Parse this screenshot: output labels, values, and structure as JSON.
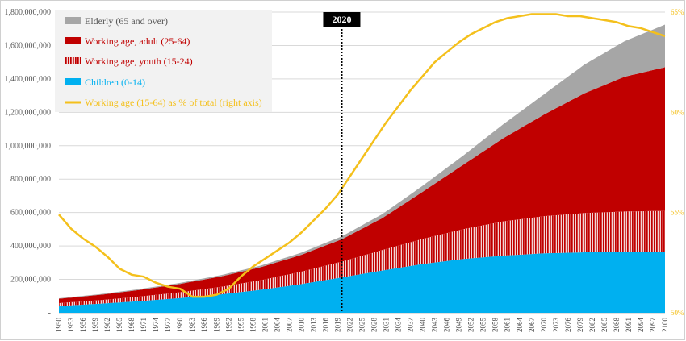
{
  "chart_data": {
    "type": "area",
    "title": "",
    "xlabel": "",
    "ylabel": "",
    "x_start": 1950,
    "x_end": 2100,
    "x_tick_step": 3,
    "ylim": [
      0,
      1800000000
    ],
    "y_ticks": [
      {
        "value": 0,
        "label": "-"
      },
      {
        "value": 200000000,
        "label": "200,000,000"
      },
      {
        "value": 400000000,
        "label": "400,000,000"
      },
      {
        "value": 600000000,
        "label": "600,000,000"
      },
      {
        "value": 800000000,
        "label": "800,000,000"
      },
      {
        "value": 1000000000,
        "label": "1,000,000,000"
      },
      {
        "value": 1200000000,
        "label": "1,200,000,000"
      },
      {
        "value": 1400000000,
        "label": "1,400,000,000"
      },
      {
        "value": 1600000000,
        "label": "1,600,000,000"
      },
      {
        "value": 1800000000,
        "label": "1,800,000,000"
      }
    ],
    "y2lim": [
      50,
      65
    ],
    "y2_ticks": [
      {
        "value": 50,
        "label": "50%"
      },
      {
        "value": 55,
        "label": "55%"
      },
      {
        "value": 60,
        "label": "60%"
      },
      {
        "value": 65,
        "label": "65%"
      }
    ],
    "grid": true,
    "legend_position": "top-left",
    "stack_order": [
      "children",
      "youth",
      "adult",
      "elderly"
    ],
    "stacked_series": [
      {
        "key": "children",
        "name": "Children (0-14)",
        "color": "#00b0f0",
        "pattern": "solid",
        "x": [
          1950,
          1960,
          1970,
          1980,
          1990,
          2000,
          2010,
          2020,
          2030,
          2040,
          2050,
          2060,
          2070,
          2080,
          2090,
          2100
        ],
        "values": [
          41000000,
          54000000,
          70000000,
          88000000,
          110000000,
          138000000,
          172000000,
          212000000,
          253000000,
          292000000,
          322000000,
          342000000,
          356000000,
          362000000,
          364000000,
          365000000
        ]
      },
      {
        "key": "youth",
        "name": "Working age, youth (15-24)",
        "color": "#c00000",
        "pattern": "stripes",
        "x": [
          1950,
          1960,
          1970,
          1980,
          1990,
          2000,
          2010,
          2020,
          2030,
          2040,
          2050,
          2060,
          2070,
          2080,
          2090,
          2100
        ],
        "values": [
          17000000,
          21000000,
          27000000,
          35000000,
          45000000,
          57000000,
          74000000,
          94000000,
          122000000,
          150000000,
          178000000,
          205000000,
          222000000,
          235000000,
          242000000,
          245000000
        ]
      },
      {
        "key": "adult",
        "name": "Working age, adult (25-64)",
        "color": "#c00000",
        "pattern": "solid",
        "x": [
          1950,
          1960,
          1970,
          1980,
          1990,
          2000,
          2010,
          2020,
          2030,
          2040,
          2050,
          2060,
          2070,
          2080,
          2090,
          2100
        ],
        "values": [
          26000000,
          32000000,
          40000000,
          50000000,
          62000000,
          78000000,
          101000000,
          134000000,
          191000000,
          282000000,
          385000000,
          498000000,
          608000000,
          716000000,
          807000000,
          860000000
        ]
      },
      {
        "key": "elderly",
        "name": "Elderly (65 and over)",
        "color": "#a6a6a6",
        "pattern": "solid",
        "x": [
          1950,
          1960,
          1970,
          1980,
          1990,
          2000,
          2010,
          2020,
          2030,
          2040,
          2050,
          2060,
          2070,
          2080,
          2090,
          2100
        ],
        "values": [
          3000000,
          4000000,
          5000000,
          6000000,
          8000000,
          10000000,
          13000000,
          17000000,
          24000000,
          36000000,
          55000000,
          84000000,
          121000000,
          172000000,
          213000000,
          255000000
        ]
      }
    ],
    "line_series": {
      "name": "Working age (15-64) as % of total (right axis)",
      "color": "#f4c01c",
      "axis": "right",
      "x": [
        1950,
        1953,
        1956,
        1959,
        1962,
        1965,
        1968,
        1971,
        1974,
        1977,
        1980,
        1983,
        1986,
        1989,
        1992,
        1995,
        1998,
        2001,
        2004,
        2007,
        2010,
        2013,
        2016,
        2019,
        2022,
        2025,
        2028,
        2031,
        2034,
        2037,
        2040,
        2043,
        2046,
        2049,
        2052,
        2055,
        2058,
        2061,
        2064,
        2067,
        2070,
        2073,
        2076,
        2079,
        2082,
        2085,
        2088,
        2091,
        2094,
        2097,
        2100
      ],
      "values": [
        54.9,
        54.2,
        53.7,
        53.3,
        52.8,
        52.2,
        51.9,
        51.8,
        51.5,
        51.3,
        51.2,
        50.8,
        50.8,
        50.9,
        51.2,
        51.8,
        52.3,
        52.7,
        53.1,
        53.5,
        54.0,
        54.6,
        55.2,
        55.9,
        56.8,
        57.7,
        58.6,
        59.5,
        60.3,
        61.1,
        61.8,
        62.5,
        63.0,
        63.5,
        63.9,
        64.2,
        64.5,
        64.7,
        64.8,
        64.9,
        64.9,
        64.9,
        64.8,
        64.8,
        64.7,
        64.6,
        64.5,
        64.3,
        64.2,
        64.0,
        63.8
      ]
    },
    "annotations": [
      {
        "type": "vertical-line",
        "x": 2020,
        "label": "2020",
        "style": "dotted"
      }
    ]
  }
}
